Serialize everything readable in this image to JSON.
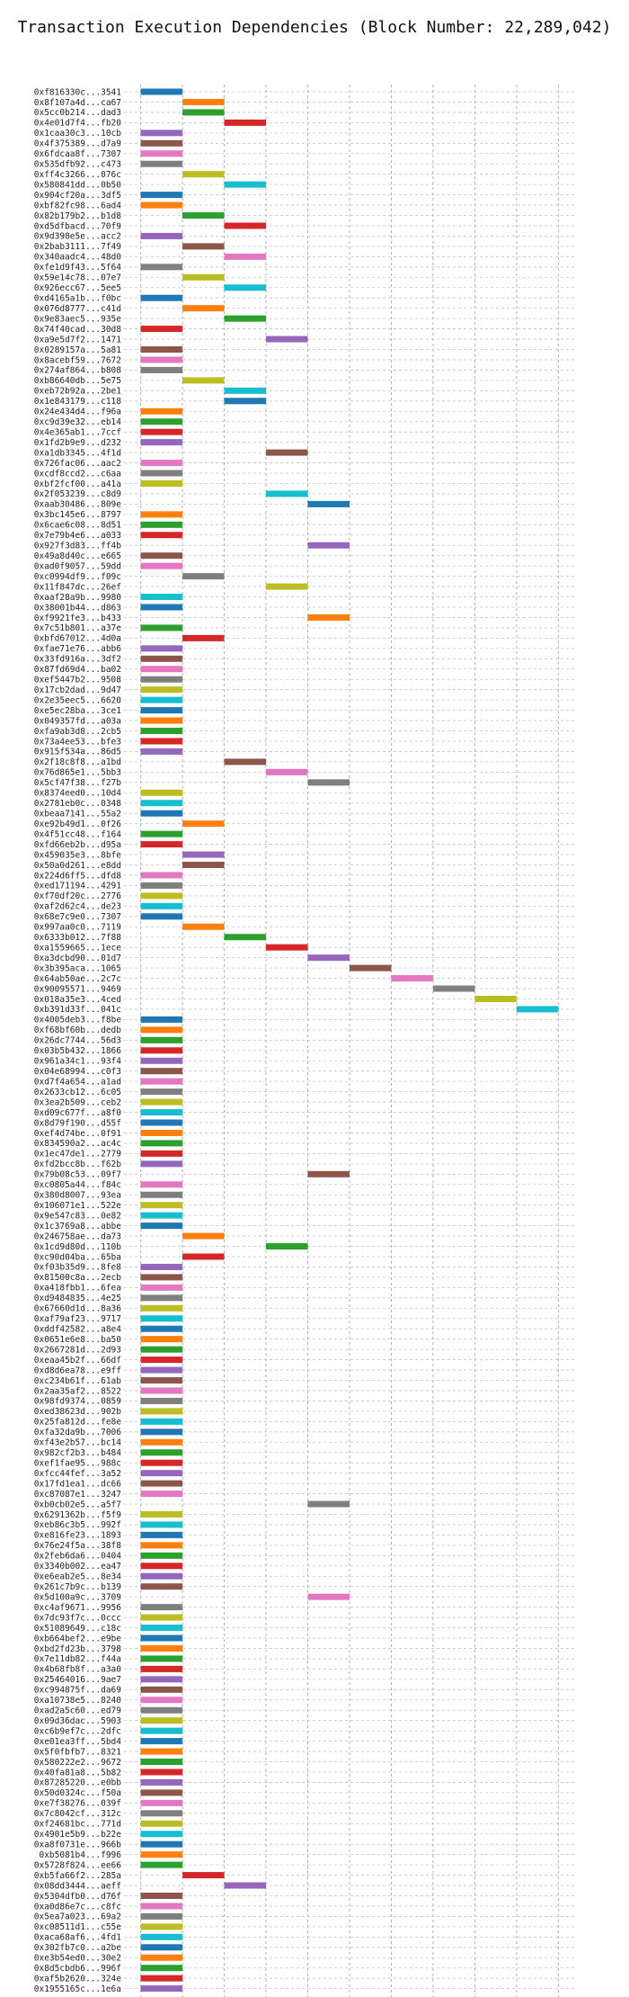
{
  "chart_data": {
    "type": "gantt",
    "title": "Transaction Execution Dependencies (Block Number: 22,289,042)",
    "xlabel": "",
    "ylabel": "",
    "xlim": [
      -0.4,
      10.4
    ],
    "xticks": [
      0,
      2,
      4,
      6,
      8,
      10
    ],
    "grid": true,
    "legend": "none",
    "bar_duration": 1,
    "colors": [
      "#1f77b4",
      "#ff7f0e",
      "#2ca02c",
      "#d62728",
      "#9467bd",
      "#8c564b",
      "#e377c2",
      "#7f7f7f",
      "#bcbd22",
      "#17becf"
    ],
    "transactions": [
      {
        "tx": "0xf816330c...3541",
        "start": 0
      },
      {
        "tx": "0x8f107a4d...ca67",
        "start": 1
      },
      {
        "tx": "0x5cc0b214...dad3",
        "start": 1
      },
      {
        "tx": "0x4e01d7f4...fb20",
        "start": 2
      },
      {
        "tx": "0x1caa30c3...10cb",
        "start": 0
      },
      {
        "tx": "0x4f375389...d7a9",
        "start": 0
      },
      {
        "tx": "0x6fdcaa8f...7307",
        "start": 0
      },
      {
        "tx": "0x535dfb92...c473",
        "start": 0
      },
      {
        "tx": "0xff4c3266...076c",
        "start": 1
      },
      {
        "tx": "0x580841dd...0b50",
        "start": 2
      },
      {
        "tx": "0x904cf20a...3df5",
        "start": 0
      },
      {
        "tx": "0xbf82fc98...6ad4",
        "start": 0
      },
      {
        "tx": "0x82b179b2...b1d8",
        "start": 1
      },
      {
        "tx": "0xd5dfbacd...70f9",
        "start": 2
      },
      {
        "tx": "0x9d398e5e...acc2",
        "start": 0
      },
      {
        "tx": "0x2bab3111...7f49",
        "start": 1
      },
      {
        "tx": "0x340aadc4...48d0",
        "start": 2
      },
      {
        "tx": "0xfe1d9f43...5f64",
        "start": 0
      },
      {
        "tx": "0x59e14c78...07e7",
        "start": 1
      },
      {
        "tx": "0x926ecc67...5ee5",
        "start": 2
      },
      {
        "tx": "0xd4165a1b...f0bc",
        "start": 0
      },
      {
        "tx": "0x076d8777...c41d",
        "start": 1
      },
      {
        "tx": "0x9e83aec5...935e",
        "start": 2
      },
      {
        "tx": "0x74f40cad...30d8",
        "start": 0
      },
      {
        "tx": "0xa9e5d7f2...1471",
        "start": 3
      },
      {
        "tx": "0x0289157a...5a81",
        "start": 0
      },
      {
        "tx": "0x8acebf59...7672",
        "start": 0
      },
      {
        "tx": "0x274af864...b808",
        "start": 0
      },
      {
        "tx": "0xb86640db...5e75",
        "start": 1
      },
      {
        "tx": "0xeb72b92a...2be1",
        "start": 2
      },
      {
        "tx": "0x1e843179...c118",
        "start": 2
      },
      {
        "tx": "0x24e434d4...f96a",
        "start": 0
      },
      {
        "tx": "0xc9d39e32...eb14",
        "start": 0
      },
      {
        "tx": "0x4e365ab1...7ccf",
        "start": 0
      },
      {
        "tx": "0x1fd2b9e9...d232",
        "start": 0
      },
      {
        "tx": "0xa1db3345...4f1d",
        "start": 3
      },
      {
        "tx": "0x726fac06...aac2",
        "start": 0
      },
      {
        "tx": "0xcdf8ccd2...c6aa",
        "start": 0
      },
      {
        "tx": "0xbf2fcf00...a41a",
        "start": 0
      },
      {
        "tx": "0x2f053239...c8d9",
        "start": 3
      },
      {
        "tx": "0xaab30486...809e",
        "start": 4
      },
      {
        "tx": "0x3bc145e6...8797",
        "start": 0
      },
      {
        "tx": "0x6cae6c08...8d51",
        "start": 0
      },
      {
        "tx": "0x7e79b4e6...a033",
        "start": 0
      },
      {
        "tx": "0x927f3d83...ff4b",
        "start": 4
      },
      {
        "tx": "0x49a8d40c...e665",
        "start": 0
      },
      {
        "tx": "0xad0f9057...59dd",
        "start": 0
      },
      {
        "tx": "0xc0994df9...f09c",
        "start": 1
      },
      {
        "tx": "0x11f847dc...26ef",
        "start": 3
      },
      {
        "tx": "0xaaf28a9b...9980",
        "start": 0
      },
      {
        "tx": "0x38001b44...d863",
        "start": 0
      },
      {
        "tx": "0xf9921fe3...b433",
        "start": 4
      },
      {
        "tx": "0x7c51b801...a37e",
        "start": 0
      },
      {
        "tx": "0xbfd67012...4d0a",
        "start": 1
      },
      {
        "tx": "0xfae71e76...abb6",
        "start": 0
      },
      {
        "tx": "0x33fd916a...3df2",
        "start": 0
      },
      {
        "tx": "0x87fd69d4...ba02",
        "start": 0
      },
      {
        "tx": "0xef5447b2...9508",
        "start": 0
      },
      {
        "tx": "0x17cb2dad...9d47",
        "start": 0
      },
      {
        "tx": "0x2e35eec5...6620",
        "start": 0
      },
      {
        "tx": "0xe5ec28ba...3ce1",
        "start": 0
      },
      {
        "tx": "0x049357fd...a03a",
        "start": 0
      },
      {
        "tx": "0xfa9ab3d8...2cb5",
        "start": 0
      },
      {
        "tx": "0x73a4ee53...bfe3",
        "start": 0
      },
      {
        "tx": "0x915f534a...86d5",
        "start": 0
      },
      {
        "tx": "0x2f18c8f8...a1bd",
        "start": 2
      },
      {
        "tx": "0x76d865e1...5bb3",
        "start": 3
      },
      {
        "tx": "0x5cf47f38...f27b",
        "start": 4
      },
      {
        "tx": "0x8374eed0...10d4",
        "start": 0
      },
      {
        "tx": "0x2781eb0c...0348",
        "start": 0
      },
      {
        "tx": "0xbeaa7141...55a2",
        "start": 0
      },
      {
        "tx": "0xe92b49d1...0f26",
        "start": 1
      },
      {
        "tx": "0x4f51cc48...f164",
        "start": 0
      },
      {
        "tx": "0xfd66eb2b...d95a",
        "start": 0
      },
      {
        "tx": "0x459035e3...8bfe",
        "start": 1
      },
      {
        "tx": "0x50a0d261...e8dd",
        "start": 1
      },
      {
        "tx": "0x224d6ff5...dfd8",
        "start": 0
      },
      {
        "tx": "0xed171194...4291",
        "start": 0
      },
      {
        "tx": "0xf70df20c...2776",
        "start": 0
      },
      {
        "tx": "0xaf2d62c4...de23",
        "start": 0
      },
      {
        "tx": "0x68e7c9e0...7307",
        "start": 0
      },
      {
        "tx": "0x997aa0c0...7119",
        "start": 1
      },
      {
        "tx": "0x6333b012...7f88",
        "start": 2
      },
      {
        "tx": "0xa1559665...1ece",
        "start": 3
      },
      {
        "tx": "0xa3dcbd90...01d7",
        "start": 4
      },
      {
        "tx": "0x3b395aca...1065",
        "start": 5
      },
      {
        "tx": "0x64ab50ae...2c7c",
        "start": 6
      },
      {
        "tx": "0x90095571...9469",
        "start": 7
      },
      {
        "tx": "0x018a35e3...4ced",
        "start": 8
      },
      {
        "tx": "0xb391d33f...041c",
        "start": 9
      },
      {
        "tx": "0x4005deb3...f8be",
        "start": 0
      },
      {
        "tx": "0xf68bf60b...dedb",
        "start": 0
      },
      {
        "tx": "0x26dc7744...56d3",
        "start": 0
      },
      {
        "tx": "0x03b5b432...1866",
        "start": 0
      },
      {
        "tx": "0x961a34c1...93f4",
        "start": 0
      },
      {
        "tx": "0x04e68994...c0f3",
        "start": 0
      },
      {
        "tx": "0xd7f4a654...a1ad",
        "start": 0
      },
      {
        "tx": "0x2633cb12...6c05",
        "start": 0
      },
      {
        "tx": "0x3ea2b509...ceb2",
        "start": 0
      },
      {
        "tx": "0xd09c677f...a8f0",
        "start": 0
      },
      {
        "tx": "0x8d79f190...d55f",
        "start": 0
      },
      {
        "tx": "0xef4d74be...0f91",
        "start": 0
      },
      {
        "tx": "0x834590a2...ac4c",
        "start": 0
      },
      {
        "tx": "0x1ec47de1...2779",
        "start": 0
      },
      {
        "tx": "0xfd2bcc8b...f62b",
        "start": 0
      },
      {
        "tx": "0x79b08c53...09f7",
        "start": 4
      },
      {
        "tx": "0xc0805a44...f84c",
        "start": 0
      },
      {
        "tx": "0x380d8007...93ea",
        "start": 0
      },
      {
        "tx": "0x106071e1...522e",
        "start": 0
      },
      {
        "tx": "0x9e547c83...0e82",
        "start": 0
      },
      {
        "tx": "0x1c3769a8...abbe",
        "start": 0
      },
      {
        "tx": "0x246758ae...da73",
        "start": 1
      },
      {
        "tx": "0x1cd9d80d...110b",
        "start": 3
      },
      {
        "tx": "0xc90d04ba...65ba",
        "start": 1
      },
      {
        "tx": "0xf03b35d9...8fe8",
        "start": 0
      },
      {
        "tx": "0x81500c8a...2ecb",
        "start": 0
      },
      {
        "tx": "0xa418fbb1...6fea",
        "start": 0
      },
      {
        "tx": "0xd9484835...4e25",
        "start": 0
      },
      {
        "tx": "0x67660d1d...8a36",
        "start": 0
      },
      {
        "tx": "0xaf79af23...9717",
        "start": 0
      },
      {
        "tx": "0xddf42582...a8e4",
        "start": 0
      },
      {
        "tx": "0x0651e6e8...ba50",
        "start": 0
      },
      {
        "tx": "0x2667281d...2d93",
        "start": 0
      },
      {
        "tx": "0xeaa45b2f...66df",
        "start": 0
      },
      {
        "tx": "0xd8d6ea78...e9ff",
        "start": 0
      },
      {
        "tx": "0xc234b61f...61ab",
        "start": 0
      },
      {
        "tx": "0x2aa35af2...8522",
        "start": 0
      },
      {
        "tx": "0x98fd9374...0859",
        "start": 0
      },
      {
        "tx": "0xed38623d...902b",
        "start": 0
      },
      {
        "tx": "0x25fa812d...fe8e",
        "start": 0
      },
      {
        "tx": "0xfa32da9b...7006",
        "start": 0
      },
      {
        "tx": "0xf43e2b57...bc14",
        "start": 0
      },
      {
        "tx": "0x982cf2b3...b484",
        "start": 0
      },
      {
        "tx": "0xef1fae95...988c",
        "start": 0
      },
      {
        "tx": "0xfcc44fef...3a52",
        "start": 0
      },
      {
        "tx": "0x17fd1ea1...dc66",
        "start": 0
      },
      {
        "tx": "0xc87087e1...3247",
        "start": 0
      },
      {
        "tx": "0xb0cb02e5...a5f7",
        "start": 4
      },
      {
        "tx": "0x6291362b...f5f9",
        "start": 0
      },
      {
        "tx": "0xeb86c3b5...992f",
        "start": 0
      },
      {
        "tx": "0xe816fe23...1893",
        "start": 0
      },
      {
        "tx": "0x76e24f5a...38f8",
        "start": 0
      },
      {
        "tx": "0x2feb6da6...0404",
        "start": 0
      },
      {
        "tx": "0x3340b002...ea47",
        "start": 0
      },
      {
        "tx": "0xe6eab2e5...8e34",
        "start": 0
      },
      {
        "tx": "0x261c7b9c...b139",
        "start": 0
      },
      {
        "tx": "0x5d100a9c...3709",
        "start": 4
      },
      {
        "tx": "0xc4af9671...9956",
        "start": 0
      },
      {
        "tx": "0x7dc93f7c...0ccc",
        "start": 0
      },
      {
        "tx": "0x51089649...c18c",
        "start": 0
      },
      {
        "tx": "0xb664bef2...e9be",
        "start": 0
      },
      {
        "tx": "0xbd2fd23b...3798",
        "start": 0
      },
      {
        "tx": "0x7e11db82...f44a",
        "start": 0
      },
      {
        "tx": "0x4b68fb8f...a3a0",
        "start": 0
      },
      {
        "tx": "0x25464016...9ae7",
        "start": 0
      },
      {
        "tx": "0xc994875f...da69",
        "start": 0
      },
      {
        "tx": "0xa10738e5...8240",
        "start": 0
      },
      {
        "tx": "0xad2a5c60...ed79",
        "start": 0
      },
      {
        "tx": "0x09d36dac...5903",
        "start": 0
      },
      {
        "tx": "0xc6b9ef7c...2dfc",
        "start": 0
      },
      {
        "tx": "0xe01ea3ff...5bd4",
        "start": 0
      },
      {
        "tx": "0x5f0fbfb7...8321",
        "start": 0
      },
      {
        "tx": "0x580222e2...9672",
        "start": 0
      },
      {
        "tx": "0x40fa81a8...5b82",
        "start": 0
      },
      {
        "tx": "0x87285220...e0bb",
        "start": 0
      },
      {
        "tx": "0x50d0324c...f50a",
        "start": 0
      },
      {
        "tx": "0xe7f38276...039f",
        "start": 0
      },
      {
        "tx": "0x7c8042cf...312c",
        "start": 0
      },
      {
        "tx": "0xf24681bc...771d",
        "start": 0
      },
      {
        "tx": "0x4901e5b9...b22e",
        "start": 0
      },
      {
        "tx": "0xa8f0731e...966b",
        "start": 0
      },
      {
        "tx": "0xb5081b4...f996",
        "start": 0
      },
      {
        "tx": "0x5728f824...ee66",
        "start": 0
      },
      {
        "tx": "0xb5fa66f2...285a",
        "start": 1
      },
      {
        "tx": "0x08dd3444...aeff",
        "start": 2
      },
      {
        "tx": "0x5304dfb0...d76f",
        "start": 0
      },
      {
        "tx": "0xa0d86e7c...c8fc",
        "start": 0
      },
      {
        "tx": "0x5ea7a023...69a2",
        "start": 0
      },
      {
        "tx": "0xc08511d1...c55e",
        "start": 0
      },
      {
        "tx": "0xaca68af6...4fd1",
        "start": 0
      },
      {
        "tx": "0x302fb7c0...a2be",
        "start": 0
      },
      {
        "tx": "0xe3b54ed0...30e2",
        "start": 0
      },
      {
        "tx": "0x8d5cbdb6...996f",
        "start": 0
      },
      {
        "tx": "0xaf5b2620...324e",
        "start": 0
      },
      {
        "tx": "0x1955165c...1e6a",
        "start": 0
      }
    ]
  }
}
